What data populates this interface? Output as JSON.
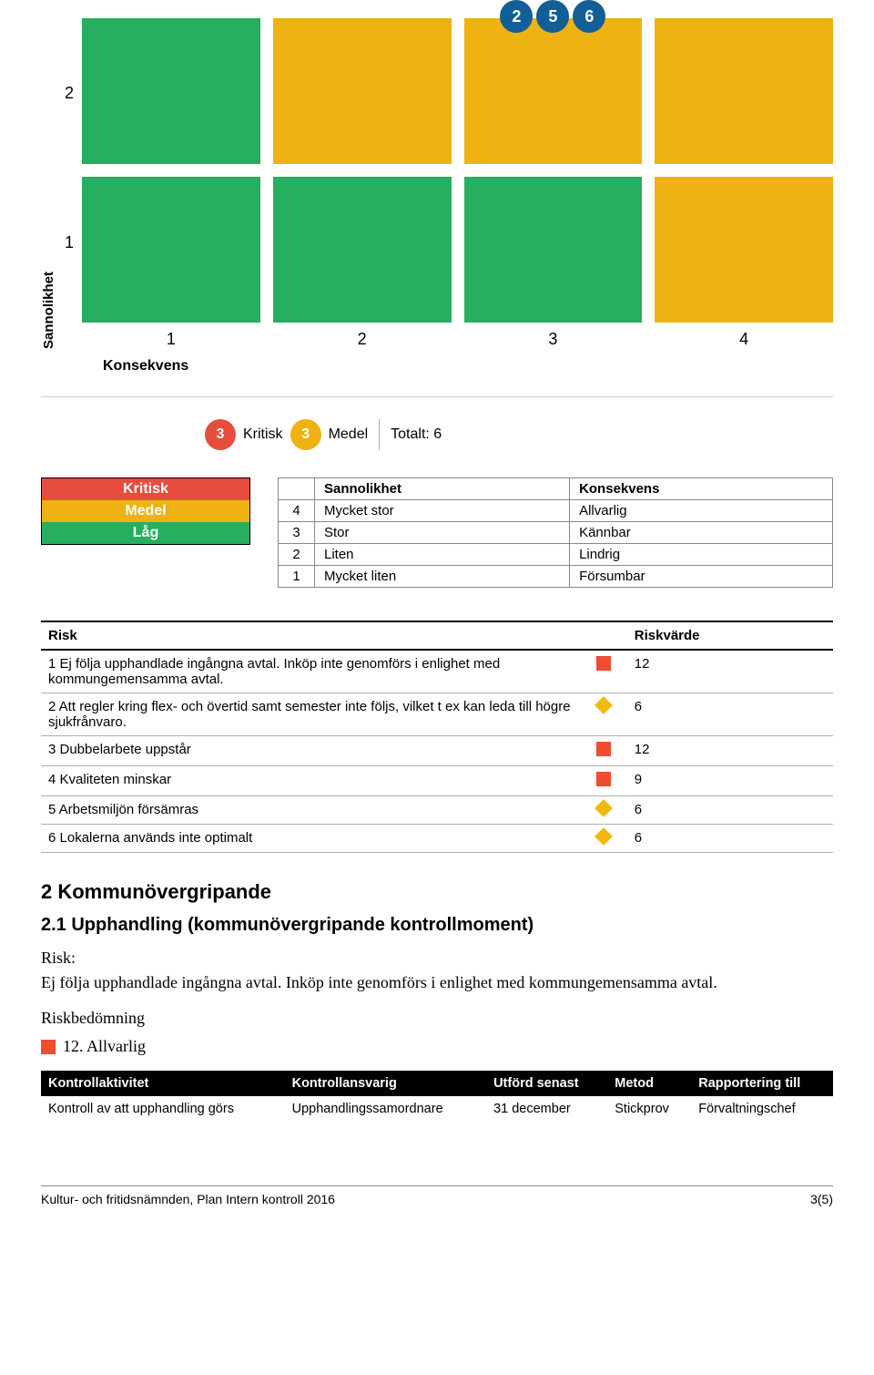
{
  "matrix": {
    "y_axis_label": "Sannolikhet",
    "x_axis_label": "Konsekvens",
    "y_ticks": [
      "2",
      "1"
    ],
    "x_ticks": [
      "1",
      "2",
      "3",
      "4"
    ],
    "rows": [
      {
        "cells": [
          {
            "color": "#27ae60",
            "badges": []
          },
          {
            "color": "#eeb213",
            "badges": []
          },
          {
            "color": "#eeb213",
            "badges": [
              "2",
              "5",
              "6"
            ]
          },
          {
            "color": "#eeb213",
            "badges": []
          }
        ]
      },
      {
        "cells": [
          {
            "color": "#27ae60",
            "badges": []
          },
          {
            "color": "#27ae60",
            "badges": []
          },
          {
            "color": "#27ae60",
            "badges": []
          },
          {
            "color": "#eeb213",
            "badges": []
          }
        ]
      }
    ]
  },
  "summary": {
    "items": [
      {
        "count": "3",
        "label": "Kritisk",
        "color": "#e64d3c"
      },
      {
        "count": "3",
        "label": "Medel",
        "color": "#eeb213"
      }
    ],
    "total_text": "Totalt: 6"
  },
  "legend": {
    "rows": [
      {
        "label": "Kritisk",
        "color": "#e64d3c"
      },
      {
        "label": "Medel",
        "color": "#eeb213"
      },
      {
        "label": "Låg",
        "color": "#27ae60"
      }
    ]
  },
  "scale": {
    "headers": [
      "Sannolikhet",
      "Konsekvens"
    ],
    "rows": [
      {
        "n": "4",
        "s": "Mycket stor",
        "k": "Allvarlig"
      },
      {
        "n": "3",
        "s": "Stor",
        "k": "Kännbar"
      },
      {
        "n": "2",
        "s": "Liten",
        "k": "Lindrig"
      },
      {
        "n": "1",
        "s": "Mycket liten",
        "k": "Försumbar"
      }
    ]
  },
  "risk_list": {
    "headers": {
      "risk": "Risk",
      "value": "Riskvärde"
    },
    "colors": {
      "square": "#ef4c32",
      "diamond": "#f2b90c"
    },
    "rows": [
      {
        "text": "1 Ej följa upphandlade ingångna avtal. Inköp inte genomförs i enlighet med kommungemensamma avtal.",
        "shape": "square",
        "value": "12"
      },
      {
        "text": "2 Att regler kring flex- och övertid samt semester inte följs, vilket t ex kan leda till högre sjukfrånvaro.",
        "shape": "diamond",
        "value": "6"
      },
      {
        "text": "3 Dubbelarbete uppstår",
        "shape": "square",
        "value": "12"
      },
      {
        "text": "4 Kvaliteten minskar",
        "shape": "square",
        "value": "9"
      },
      {
        "text": "5 Arbetsmiljön försämras",
        "shape": "diamond",
        "value": "6"
      },
      {
        "text": "6 Lokalerna används inte optimalt",
        "shape": "diamond",
        "value": "6"
      }
    ]
  },
  "section2": {
    "title": "2  Kommunövergripande",
    "sub_title": "2.1   Upphandling (kommunövergripande kontrollmoment)",
    "risk_label": "Risk:",
    "risk_text": "Ej följa upphandlade ingångna avtal. Inköp inte genomförs i enlighet med kommungemensamma avtal.",
    "assessment_label": "Riskbedömning",
    "rating_text": "12. Allvarlig",
    "rating_color": "#ef4c32"
  },
  "control_table": {
    "headers": [
      "Kontrollaktivitet",
      "Kontrollansvarig",
      "Utförd senast",
      "Metod",
      "Rapportering till"
    ],
    "row": [
      "Kontroll av att upphandling görs",
      "Upphandlingssamordnare",
      "31 december",
      "Stickprov",
      "Förvaltningschef"
    ]
  },
  "footer": {
    "left": "Kultur- och fritidsnämnden, Plan Intern kontroll 2016",
    "right": "3(5)"
  }
}
